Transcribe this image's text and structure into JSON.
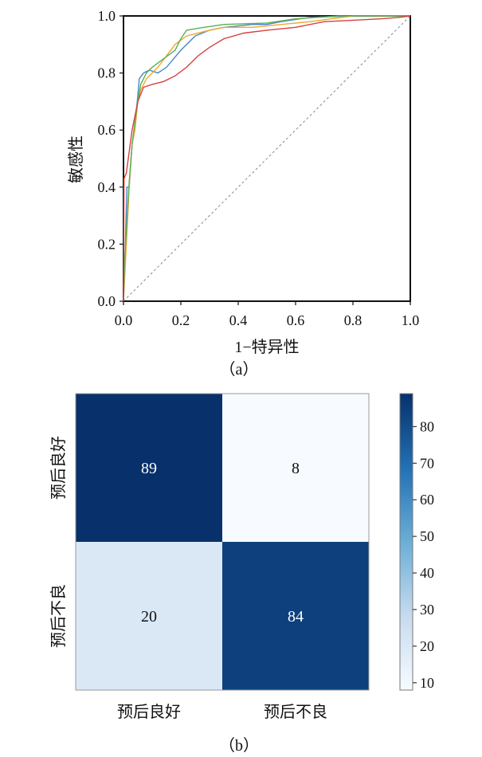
{
  "chart_data": [
    {
      "type": "line",
      "panel_caption": "（a）",
      "xlabel": "1−特异性",
      "ylabel": "敏感性",
      "xlim": [
        0,
        1
      ],
      "ylim": [
        0,
        1
      ],
      "x_ticks": [
        "0.0",
        "0.2",
        "0.4",
        "0.6",
        "0.8",
        "1.0"
      ],
      "y_ticks": [
        "0.0",
        "0.2",
        "0.4",
        "0.6",
        "0.8",
        "1.0"
      ],
      "grid": false,
      "legend": "none",
      "reference_line": {
        "style": "dashed",
        "color": "#888888",
        "points": [
          [
            0,
            0
          ],
          [
            1,
            1
          ]
        ]
      },
      "series": [
        {
          "color": "#4a86c8",
          "points": [
            [
              0,
              0
            ],
            [
              0.005,
              0.15
            ],
            [
              0.012,
              0.4
            ],
            [
              0.02,
              0.4
            ],
            [
              0.03,
              0.55
            ],
            [
              0.04,
              0.62
            ],
            [
              0.05,
              0.72
            ],
            [
              0.055,
              0.78
            ],
            [
              0.07,
              0.8
            ],
            [
              0.09,
              0.81
            ],
            [
              0.12,
              0.8
            ],
            [
              0.15,
              0.82
            ],
            [
              0.2,
              0.88
            ],
            [
              0.25,
              0.93
            ],
            [
              0.3,
              0.95
            ],
            [
              0.35,
              0.96
            ],
            [
              0.45,
              0.97
            ],
            [
              0.5,
              0.97
            ],
            [
              0.55,
              0.98
            ],
            [
              0.65,
              0.995
            ],
            [
              0.8,
              1.0
            ],
            [
              1.0,
              1.0
            ]
          ]
        },
        {
          "color": "#f0a830",
          "points": [
            [
              0,
              0
            ],
            [
              0.01,
              0.2
            ],
            [
              0.02,
              0.4
            ],
            [
              0.03,
              0.55
            ],
            [
              0.04,
              0.6
            ],
            [
              0.05,
              0.7
            ],
            [
              0.06,
              0.74
            ],
            [
              0.08,
              0.78
            ],
            [
              0.1,
              0.8
            ],
            [
              0.12,
              0.82
            ],
            [
              0.15,
              0.86
            ],
            [
              0.18,
              0.9
            ],
            [
              0.22,
              0.93
            ],
            [
              0.3,
              0.95
            ],
            [
              0.35,
              0.96
            ],
            [
              0.45,
              0.96
            ],
            [
              0.55,
              0.97
            ],
            [
              0.65,
              0.98
            ],
            [
              0.8,
              1.0
            ],
            [
              1.0,
              1.0
            ]
          ]
        },
        {
          "color": "#58b058",
          "points": [
            [
              0,
              0
            ],
            [
              0.005,
              0.16
            ],
            [
              0.02,
              0.42
            ],
            [
              0.03,
              0.55
            ],
            [
              0.04,
              0.63
            ],
            [
              0.05,
              0.7
            ],
            [
              0.06,
              0.76
            ],
            [
              0.08,
              0.8
            ],
            [
              0.1,
              0.82
            ],
            [
              0.14,
              0.85
            ],
            [
              0.18,
              0.88
            ],
            [
              0.2,
              0.92
            ],
            [
              0.22,
              0.95
            ],
            [
              0.28,
              0.96
            ],
            [
              0.35,
              0.97
            ],
            [
              0.5,
              0.975
            ],
            [
              0.6,
              0.99
            ],
            [
              0.75,
              1.0
            ],
            [
              1.0,
              1.0
            ]
          ]
        },
        {
          "color": "#d84040",
          "points": [
            [
              0,
              0
            ],
            [
              0.002,
              0.43
            ],
            [
              0.01,
              0.45
            ],
            [
              0.03,
              0.6
            ],
            [
              0.05,
              0.7
            ],
            [
              0.07,
              0.75
            ],
            [
              0.1,
              0.76
            ],
            [
              0.14,
              0.77
            ],
            [
              0.18,
              0.79
            ],
            [
              0.22,
              0.82
            ],
            [
              0.26,
              0.86
            ],
            [
              0.3,
              0.89
            ],
            [
              0.35,
              0.92
            ],
            [
              0.42,
              0.94
            ],
            [
              0.5,
              0.95
            ],
            [
              0.6,
              0.96
            ],
            [
              0.7,
              0.98
            ],
            [
              0.8,
              0.985
            ],
            [
              0.9,
              0.99
            ],
            [
              0.96,
              0.995
            ],
            [
              1.0,
              1.0
            ]
          ]
        }
      ]
    },
    {
      "type": "heatmap",
      "panel_caption": "（b）",
      "row_labels": [
        "预后良好",
        "预后不良"
      ],
      "col_labels": [
        "预后良好",
        "预后不良"
      ],
      "values": [
        [
          89,
          8
        ],
        [
          20,
          84
        ]
      ],
      "colormap": "Blues",
      "colorbar": {
        "min": 8,
        "max": 89,
        "ticks": [
          "10",
          "20",
          "30",
          "40",
          "50",
          "60",
          "70",
          "80"
        ]
      },
      "colors": {
        "low": "#f7fbff",
        "high": "#08306b"
      }
    }
  ]
}
